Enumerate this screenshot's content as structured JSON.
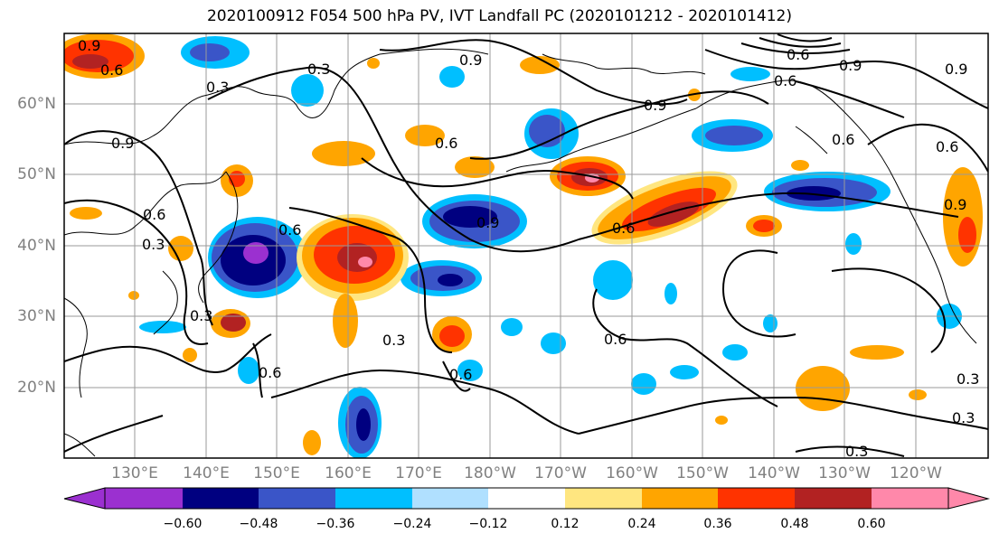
{
  "title": "2020100912 F054 500 hPa PV, IVT Landfall PC (2020101212 - 2020101412)",
  "lat_labels": [
    "60°N",
    "50°N",
    "40°N",
    "30°N",
    "20°N"
  ],
  "lon_labels": [
    "130°E",
    "140°E",
    "150°E",
    "160°E",
    "170°E",
    "180°W",
    "170°W",
    "160°W",
    "150°W",
    "140°W",
    "130°W",
    "120°W"
  ],
  "colorbar": {
    "ticks": [
      "−0.60",
      "−0.48",
      "−0.36",
      "−0.24",
      "−0.12",
      "0.12",
      "0.24",
      "0.36",
      "0.48",
      "0.60"
    ],
    "colors": [
      "#9b30d0",
      "#000080",
      "#3a55c8",
      "#00bfff",
      "#b0e0ff",
      "#ffffff",
      "#ffe680",
      "#ffa500",
      "#ff3300",
      "#b22222",
      "#ff88aa"
    ]
  },
  "contour_labels": [
    "0.9",
    "0.6",
    "0.3",
    "0.3",
    "0.9",
    "0.6",
    "0.9",
    "0.6",
    "0.9",
    "0.6",
    "0.6",
    "0.9",
    "0.6",
    "0.9",
    "0.6",
    "0.9",
    "0.6",
    "0.3",
    "0.6",
    "0.3",
    "0.3",
    "0.6",
    "0.6",
    "0.6",
    "0.3",
    "0.3",
    "0.3",
    "0.9"
  ]
}
